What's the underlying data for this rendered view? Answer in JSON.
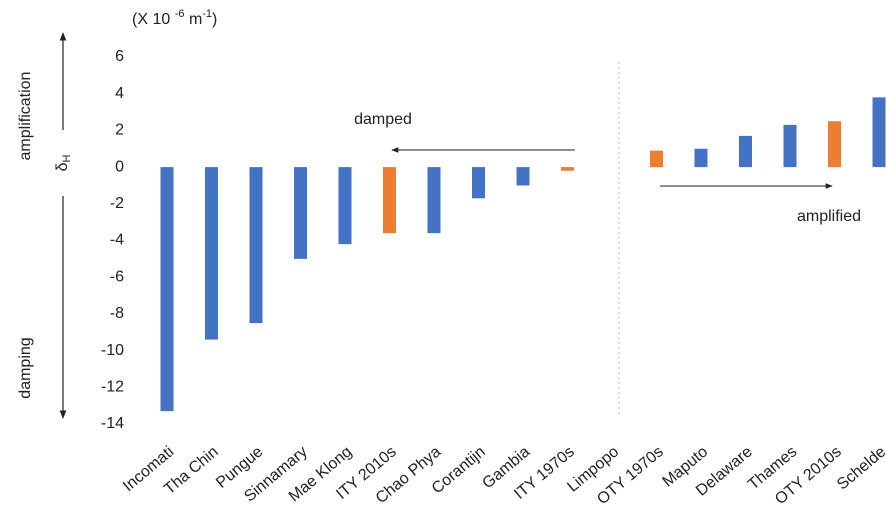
{
  "chart_data": {
    "type": "bar",
    "unit_label": {
      "open": "(X 10",
      "exp1": "-6",
      "unit": "m",
      "exp2": "-1",
      "close": ")"
    },
    "symbol": {
      "main": "δ",
      "sub": "H"
    },
    "side_labels": {
      "up": "amplification",
      "down": "damping"
    },
    "annotations": {
      "left": "damped",
      "right": "amplified"
    },
    "categories": [
      "Incomati",
      "Tha Chin",
      "Pungue",
      "Sinnamary",
      "Mae Klong",
      "ITY 2010s",
      "Chao Phya",
      "Corantijn",
      "Gambia",
      "ITY 1970s",
      "Limpopo",
      "OTY 1970s",
      "Maputo",
      "Delaware",
      "Thames",
      "OTY 2010s",
      "Schelde"
    ],
    "values": [
      -13.3,
      -9.4,
      -8.5,
      -5.0,
      -4.2,
      -3.6,
      -3.6,
      -1.7,
      -1.0,
      -0.2,
      0,
      0.9,
      1.0,
      1.7,
      2.3,
      2.5,
      3.8
    ],
    "colors": [
      "#4472c4",
      "#4472c4",
      "#4472c4",
      "#4472c4",
      "#4472c4",
      "#ed7d31",
      "#4472c4",
      "#4472c4",
      "#4472c4",
      "#ed7d31",
      "#4472c4",
      "#ed7d31",
      "#4472c4",
      "#4472c4",
      "#4472c4",
      "#ed7d31",
      "#4472c4"
    ],
    "ylim": [
      -14,
      6
    ],
    "yticks": [
      6,
      4,
      2,
      0,
      -2,
      -4,
      -6,
      -8,
      -10,
      -12,
      -14
    ],
    "grid": false
  }
}
